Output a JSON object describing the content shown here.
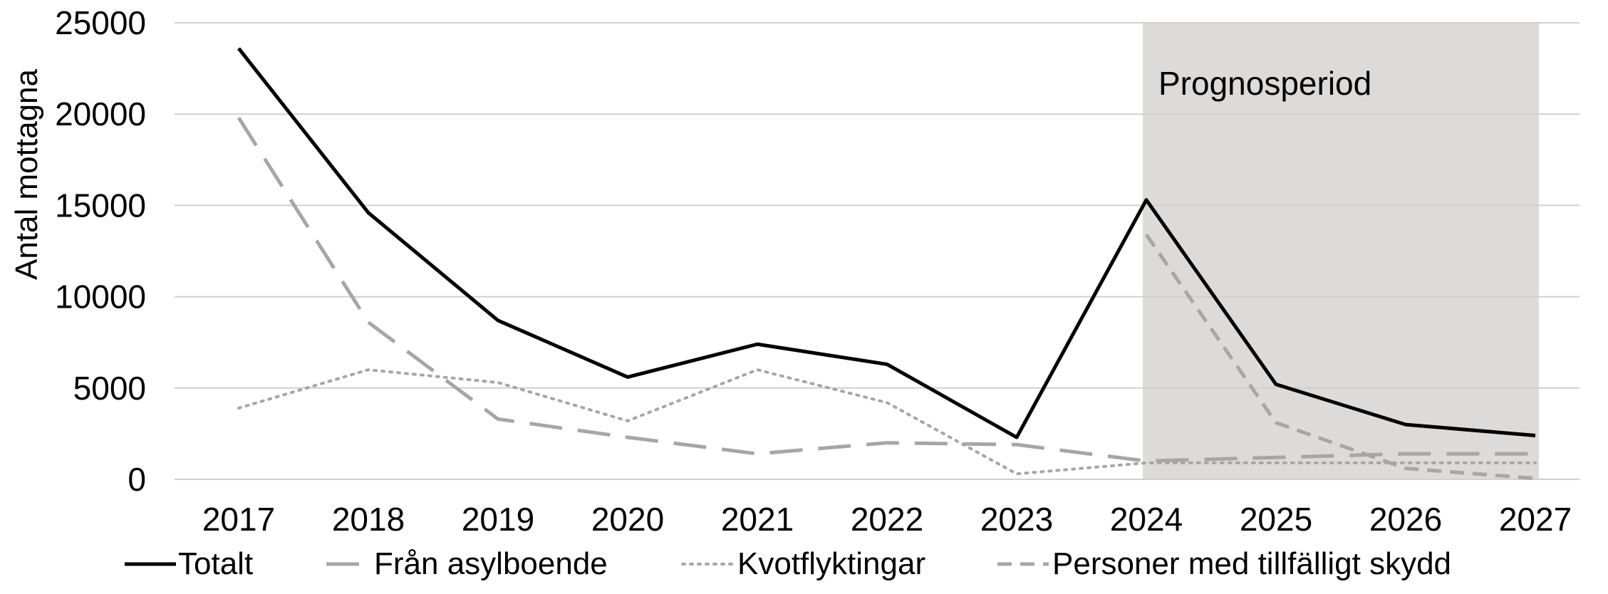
{
  "chart_data": {
    "type": "line",
    "title": "",
    "xlabel": "",
    "ylabel": "Antal mottagna",
    "ylim": [
      0,
      25000
    ],
    "yticks": [
      "0",
      "5000",
      "10000",
      "15000",
      "20000",
      "25000"
    ],
    "categories": [
      "2017",
      "2018",
      "2019",
      "2020",
      "2021",
      "2022",
      "2023",
      "2024",
      "2025",
      "2026",
      "2027"
    ],
    "grid": true,
    "legend_position": "bottom",
    "forecast_region": {
      "label": "Prognosperiod",
      "from": "2024",
      "to": "2027",
      "color": "#dcdbd9"
    },
    "series": [
      {
        "name": "Totalt",
        "color": "#000000",
        "dash": "solid",
        "values": [
          23600,
          14600,
          8700,
          5600,
          7400,
          6300,
          2300,
          15300,
          5200,
          3000,
          2400
        ]
      },
      {
        "name": "Från asylboende",
        "color": "#a6a6a6",
        "dash": "longdash",
        "values": [
          19800,
          8600,
          3300,
          2300,
          1400,
          2000,
          1900,
          1000,
          1200,
          1400,
          1400
        ]
      },
      {
        "name": "Kvotflyktingar",
        "color": "#a6a6a6",
        "dash": "dot",
        "values": [
          3900,
          6000,
          5300,
          3200,
          6000,
          4200,
          300,
          900,
          900,
          900,
          900
        ]
      },
      {
        "name": "Personer med tillfälligt skydd",
        "color": "#a6a6a6",
        "dash": "shortdash",
        "values": [
          null,
          null,
          null,
          null,
          null,
          null,
          null,
          13400,
          3100,
          600,
          50
        ]
      }
    ]
  }
}
